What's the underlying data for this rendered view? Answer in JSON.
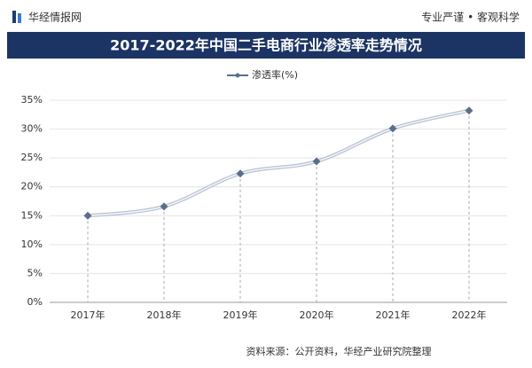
{
  "header": {
    "brand": "华经情报网",
    "slogan": "专业严谨 • 客观科学"
  },
  "chart_data": {
    "type": "line",
    "title": "2017-2022年中国二手电商行业渗透率走势情况",
    "categories": [
      "2017年",
      "2018年",
      "2019年",
      "2020年",
      "2021年",
      "2022年"
    ],
    "series": [
      {
        "name": "渗透率(%)",
        "color": "#5b6e8c",
        "values": [
          15.0,
          16.6,
          22.3,
          24.4,
          30.1,
          33.2
        ]
      }
    ],
    "ylim": [
      0,
      35
    ],
    "yticks": [
      {
        "value": 0,
        "label": "0%"
      },
      {
        "value": 5,
        "label": "5%"
      },
      {
        "value": 10,
        "label": "10%"
      },
      {
        "value": 15,
        "label": "15%"
      },
      {
        "value": 20,
        "label": "20%"
      },
      {
        "value": 25,
        "label": "25%"
      },
      {
        "value": 30,
        "label": "30%"
      },
      {
        "value": 35,
        "label": "35%"
      }
    ],
    "grid": true,
    "legend": "top",
    "source": "资料来源：公开资料，华经产业研究院整理"
  }
}
